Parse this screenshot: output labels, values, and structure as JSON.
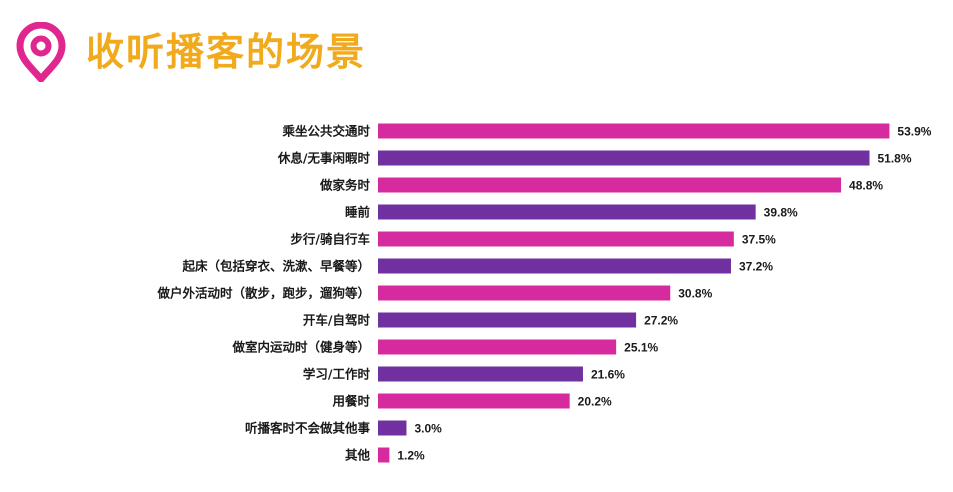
{
  "header": {
    "title": "收听播客的场景",
    "icon": "location-pin-icon",
    "icon_color": "#E0268F"
  },
  "colors": {
    "magenta": "#D62B9E",
    "purple": "#7030A0",
    "title": "#F0AA1C"
  },
  "chart_data": {
    "type": "bar",
    "orientation": "horizontal",
    "categories": [
      "乘坐公共交通时",
      "休息/无事闲暇时",
      "做家务时",
      "睡前",
      "步行/骑自行车",
      "起床（包括穿衣、洗漱、早餐等）",
      "做户外活动时（散步，跑步，遛狗等）",
      "开车/自驾时",
      "做室内运动时（健身等）",
      "学习/工作时",
      "用餐时",
      "听播客时不会做其他事",
      "其他"
    ],
    "values": [
      53.9,
      51.8,
      48.8,
      39.8,
      37.5,
      37.2,
      30.8,
      27.2,
      25.1,
      21.6,
      20.2,
      3.0,
      1.2
    ],
    "value_labels": [
      "53.9%",
      "51.8%",
      "48.8%",
      "39.8%",
      "37.5%",
      "37.2%",
      "30.8%",
      "27.2%",
      "25.1%",
      "21.6%",
      "20.2%",
      "3.0%",
      "1.2%"
    ],
    "bar_colors": [
      "#D62B9E",
      "#7030A0",
      "#D62B9E",
      "#7030A0",
      "#D62B9E",
      "#7030A0",
      "#D62B9E",
      "#7030A0",
      "#D62B9E",
      "#7030A0",
      "#D62B9E",
      "#7030A0",
      "#D62B9E"
    ],
    "title": "",
    "xlabel": "",
    "ylabel": "",
    "xlim": [
      0,
      56.7
    ],
    "grid": false,
    "legend": "none"
  }
}
